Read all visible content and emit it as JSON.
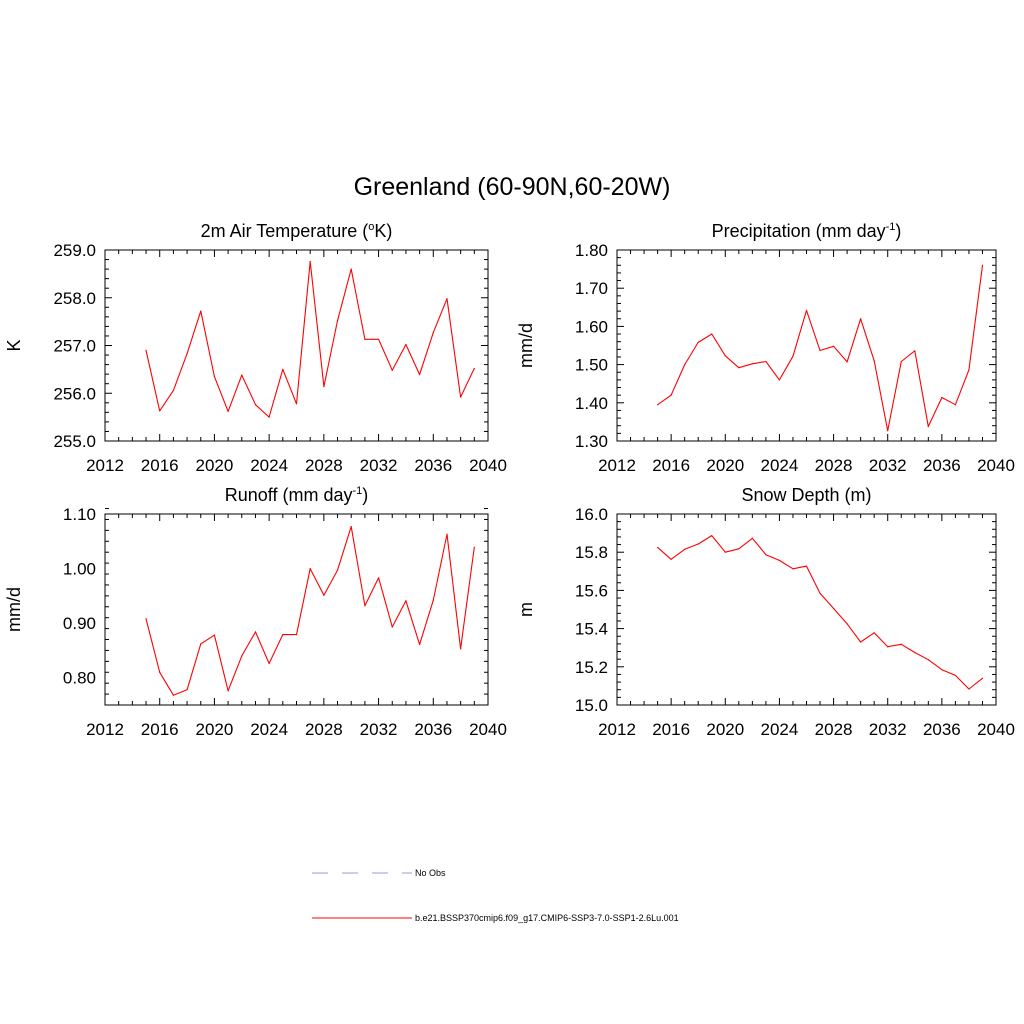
{
  "figure": {
    "title": "Greenland (60-90N,60-20W)"
  },
  "legend": {
    "placement": "bottom-center",
    "items": [
      {
        "label": "No Obs",
        "color": "#9999dd",
        "dash": "dashed"
      },
      {
        "label": "b.e21.BSSP370cmip6.f09_g17.CMIP6-SSP3-7.0-SSP1-2.6Lu.001",
        "color": "#ff0000",
        "dash": "solid"
      }
    ]
  },
  "chart_data": [
    {
      "type": "line",
      "title": "2m Air Temperature (",
      "title_sup": "o",
      "title_after": "K)",
      "ylabel": "K",
      "xlim": [
        2012,
        2040
      ],
      "ylim": [
        255.0,
        259.0
      ],
      "xticks": [
        2012,
        2016,
        2020,
        2024,
        2028,
        2032,
        2036,
        2040
      ],
      "yticks": [
        "255.0",
        "256.0",
        "257.0",
        "258.0",
        "259.0"
      ],
      "color": "#ff0000",
      "x": [
        2015,
        2016,
        2017,
        2018,
        2019,
        2020,
        2021,
        2022,
        2023,
        2024,
        2025,
        2026,
        2027,
        2028,
        2029,
        2030,
        2031,
        2032,
        2033,
        2034,
        2035,
        2036,
        2037,
        2038,
        2039
      ],
      "values": [
        256.9,
        255.63,
        256.06,
        256.83,
        257.72,
        256.35,
        255.62,
        256.38,
        255.76,
        255.5,
        256.5,
        255.78,
        258.76,
        256.14,
        257.52,
        258.6,
        257.13,
        257.13,
        256.48,
        257.02,
        256.39,
        257.27,
        257.98,
        255.92,
        256.52
      ]
    },
    {
      "type": "line",
      "title": "Precipitation (mm day",
      "title_sup": "-1",
      "title_after": ")",
      "ylabel": "mm/d",
      "xlim": [
        2012,
        2040
      ],
      "ylim": [
        1.3,
        1.8
      ],
      "xticks": [
        2012,
        2016,
        2020,
        2024,
        2028,
        2032,
        2036,
        2040
      ],
      "yticks": [
        "1.30",
        "1.40",
        "1.50",
        "1.60",
        "1.70",
        "1.80"
      ],
      "color": "#ff0000",
      "x": [
        2015,
        2016,
        2017,
        2018,
        2019,
        2020,
        2021,
        2022,
        2023,
        2024,
        2025,
        2026,
        2027,
        2028,
        2029,
        2030,
        2031,
        2032,
        2033,
        2034,
        2035,
        2036,
        2037,
        2038,
        2039
      ],
      "values": [
        1.395,
        1.42,
        1.5,
        1.558,
        1.58,
        1.523,
        1.492,
        1.502,
        1.508,
        1.46,
        1.522,
        1.642,
        1.537,
        1.548,
        1.507,
        1.62,
        1.51,
        1.327,
        1.508,
        1.536,
        1.338,
        1.414,
        1.395,
        1.486,
        1.76
      ]
    },
    {
      "type": "line",
      "title": "Runoff (mm day",
      "title_sup": "-1",
      "title_after": ")",
      "ylabel": "mm/d",
      "xlim": [
        2012,
        2040
      ],
      "ylim": [
        0.75,
        1.1
      ],
      "xticks": [
        2012,
        2016,
        2020,
        2024,
        2028,
        2032,
        2036,
        2040
      ],
      "yticks": [
        "0.80",
        "0.90",
        "1.00",
        "1.10"
      ],
      "color": "#ff0000",
      "x": [
        2015,
        2016,
        2017,
        2018,
        2019,
        2020,
        2021,
        2022,
        2023,
        2024,
        2025,
        2026,
        2027,
        2028,
        2029,
        2030,
        2031,
        2032,
        2033,
        2034,
        2035,
        2036,
        2037,
        2038,
        2039
      ],
      "values": [
        0.908,
        0.81,
        0.768,
        0.778,
        0.862,
        0.878,
        0.776,
        0.84,
        0.884,
        0.826,
        0.879,
        0.879,
        1.0,
        0.951,
        0.997,
        1.077,
        0.932,
        0.983,
        0.893,
        0.941,
        0.861,
        0.942,
        1.063,
        0.853,
        1.039
      ]
    },
    {
      "type": "line",
      "title": "Snow Depth (m)",
      "title_sup": "",
      "title_after": "",
      "ylabel": "m",
      "xlim": [
        2012,
        2040
      ],
      "ylim": [
        15.0,
        16.0
      ],
      "xticks": [
        2012,
        2016,
        2020,
        2024,
        2028,
        2032,
        2036,
        2040
      ],
      "yticks": [
        "15.0",
        "15.2",
        "15.4",
        "15.6",
        "15.8",
        "16.0"
      ],
      "color": "#ff0000",
      "x": [
        2015,
        2016,
        2017,
        2018,
        2019,
        2020,
        2021,
        2022,
        2023,
        2024,
        2025,
        2026,
        2027,
        2028,
        2029,
        2030,
        2031,
        2032,
        2033,
        2034,
        2035,
        2036,
        2037,
        2038,
        2039
      ],
      "values": [
        15.825,
        15.763,
        15.815,
        15.843,
        15.887,
        15.8,
        15.818,
        15.873,
        15.787,
        15.757,
        15.713,
        15.727,
        15.585,
        15.505,
        15.425,
        15.33,
        15.378,
        15.305,
        15.318,
        15.275,
        15.237,
        15.185,
        15.155,
        15.084,
        15.14
      ]
    }
  ]
}
